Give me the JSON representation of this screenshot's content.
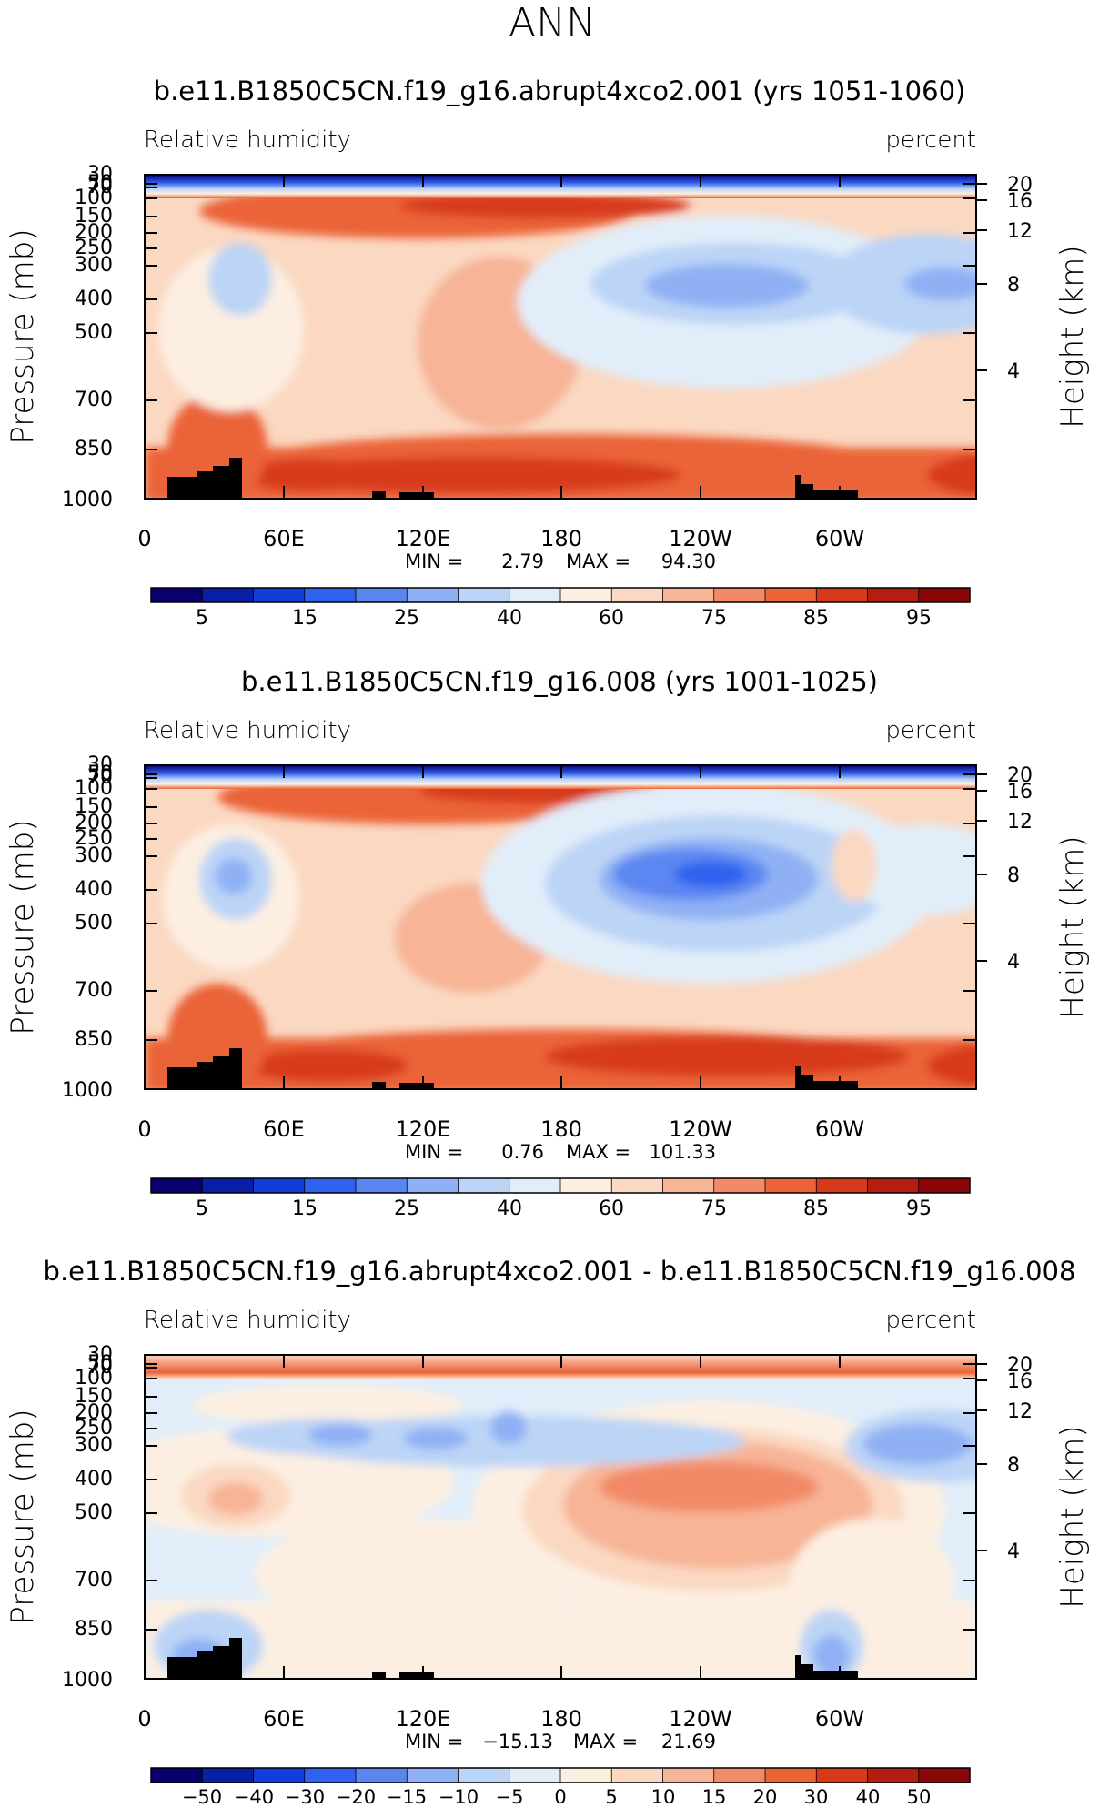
{
  "figure_title": "ANN",
  "colors": {
    "abs_scale": [
      "#08006e",
      "#0a1fa6",
      "#0f3fd8",
      "#2f62ef",
      "#5b86f2",
      "#8fb0f4",
      "#bcd4f6",
      "#e1eefa",
      "#fcefe1",
      "#fbd8c2",
      "#f7b496",
      "#f28a68",
      "#eb6437",
      "#d73a1a",
      "#b31e10",
      "#8b0707"
    ],
    "diff_scale": [
      "#08006e",
      "#0a1fa6",
      "#0f3fd8",
      "#2f62ef",
      "#5b86f2",
      "#8fb0f4",
      "#bcd4f6",
      "#e1eefa",
      "#fcefe1",
      "#fbd8c2",
      "#f7b496",
      "#f28a68",
      "#eb6437",
      "#d73a1a",
      "#b31e10",
      "#8b0707"
    ],
    "topo": "#000000"
  },
  "chart_data": [
    {
      "type": "heatmap",
      "title": "b.e11.B1850C5CN.f19_g16.abrupt4xco2.001 (yrs 1051-1060)",
      "left_label": "Relative humidity",
      "right_label": "percent",
      "ylabel": "Pressure (mb)",
      "y2label": "Height (km)",
      "y_ticks": [
        "30",
        "50",
        "70",
        "100",
        "150",
        "200",
        "250",
        "300",
        "400",
        "500",
        "700",
        "850",
        "1000"
      ],
      "y2_ticks": [
        "20",
        "16",
        "12",
        "8",
        "4"
      ],
      "x_ticks": [
        "0",
        "60E",
        "120E",
        "180",
        "120W",
        "60W"
      ],
      "min_label": "MIN =",
      "min_value": "2.79",
      "max_label": "MAX =",
      "max_value": "94.30",
      "colorbar_ticks": [
        "5",
        "15",
        "25",
        "40",
        "60",
        "75",
        "85",
        "95"
      ],
      "xlim": [
        0,
        360
      ],
      "ylim": [
        1000,
        30
      ],
      "scale": "abs"
    },
    {
      "type": "heatmap",
      "title": "b.e11.B1850C5CN.f19_g16.008 (yrs 1001-1025)",
      "left_label": "Relative humidity",
      "right_label": "percent",
      "ylabel": "Pressure (mb)",
      "y2label": "Height (km)",
      "y_ticks": [
        "30",
        "50",
        "70",
        "100",
        "150",
        "200",
        "250",
        "300",
        "400",
        "500",
        "700",
        "850",
        "1000"
      ],
      "y2_ticks": [
        "20",
        "16",
        "12",
        "8",
        "4"
      ],
      "x_ticks": [
        "0",
        "60E",
        "120E",
        "180",
        "120W",
        "60W"
      ],
      "min_label": "MIN =",
      "min_value": "0.76",
      "max_label": "MAX =",
      "max_value": "101.33",
      "colorbar_ticks": [
        "5",
        "15",
        "25",
        "40",
        "60",
        "75",
        "85",
        "95"
      ],
      "xlim": [
        0,
        360
      ],
      "ylim": [
        1000,
        30
      ],
      "scale": "abs"
    },
    {
      "type": "heatmap",
      "title": "b.e11.B1850C5CN.f19_g16.abrupt4xco2.001 - b.e11.B1850C5CN.f19_g16.008",
      "left_label": "Relative humidity",
      "right_label": "percent",
      "ylabel": "Pressure (mb)",
      "y2label": "Height (km)",
      "y_ticks": [
        "30",
        "50",
        "70",
        "100",
        "150",
        "200",
        "250",
        "300",
        "400",
        "500",
        "700",
        "850",
        "1000"
      ],
      "y2_ticks": [
        "20",
        "16",
        "12",
        "8",
        "4"
      ],
      "x_ticks": [
        "0",
        "60E",
        "120E",
        "180",
        "120W",
        "60W"
      ],
      "min_label": "MIN =",
      "min_value": "−15.13",
      "max_label": "MAX =",
      "max_value": "21.69",
      "colorbar_ticks": [
        "−50",
        "−40",
        "−30",
        "−20",
        "−15",
        "−10",
        "−5",
        "0",
        "5",
        "10",
        "15",
        "20",
        "30",
        "40",
        "50"
      ],
      "xlim": [
        0,
        360
      ],
      "ylim": [
        1000,
        30
      ],
      "scale": "diff"
    }
  ]
}
